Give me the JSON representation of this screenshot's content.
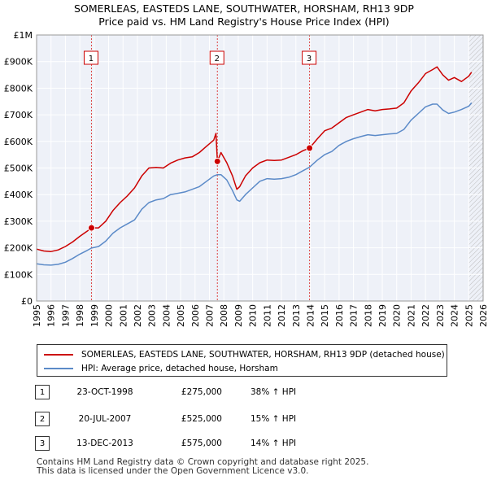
{
  "title_line1": "SOMERLEAS, EASTEDS LANE, SOUTHWATER, HORSHAM, RH13 9DP",
  "title_line2": "Price paid vs. HM Land Registry's House Price Index (HPI)",
  "chart_data": {
    "type": "line",
    "x_range": [
      1995,
      2026
    ],
    "ylim": [
      0,
      1000000
    ],
    "y_ticks": [
      {
        "value": 0,
        "label": "£0"
      },
      {
        "value": 100000,
        "label": "£100K"
      },
      {
        "value": 200000,
        "label": "£200K"
      },
      {
        "value": 300000,
        "label": "£300K"
      },
      {
        "value": 400000,
        "label": "£400K"
      },
      {
        "value": 500000,
        "label": "£500K"
      },
      {
        "value": 600000,
        "label": "£600K"
      },
      {
        "value": 700000,
        "label": "£700K"
      },
      {
        "value": 800000,
        "label": "£800K"
      },
      {
        "value": 900000,
        "label": "£900K"
      },
      {
        "value": 1000000,
        "label": "£1M"
      }
    ],
    "x_ticks": [
      "1995",
      "1996",
      "1997",
      "1998",
      "1999",
      "2000",
      "2001",
      "2002",
      "2003",
      "2004",
      "2005",
      "2006",
      "2007",
      "2008",
      "2009",
      "2010",
      "2011",
      "2012",
      "2013",
      "2014",
      "2015",
      "2016",
      "2017",
      "2018",
      "2019",
      "2020",
      "2021",
      "2022",
      "2023",
      "2024",
      "2025",
      "2026"
    ],
    "grid": true,
    "future_hatch_from": 2025.0,
    "series": [
      {
        "name": "SOMERLEAS, EASTEDS LANE, SOUTHWATER, HORSHAM, RH13 9DP (detached house)",
        "color": "#cc0000",
        "x": [
          1995.0,
          1995.5,
          1996.0,
          1996.5,
          1997.0,
          1997.5,
          1998.0,
          1998.5,
          1998.81,
          1999.3,
          1999.8,
          2000.3,
          2000.8,
          2001.3,
          2001.8,
          2002.3,
          2002.8,
          2003.3,
          2003.8,
          2004.3,
          2004.8,
          2005.3,
          2005.8,
          2006.3,
          2006.8,
          2007.3,
          2007.45,
          2007.55,
          2007.8,
          2008.2,
          2008.6,
          2008.9,
          2009.1,
          2009.5,
          2010.0,
          2010.5,
          2011.0,
          2011.5,
          2012.0,
          2012.5,
          2013.0,
          2013.5,
          2013.95,
          2014.5,
          2015.0,
          2015.5,
          2016.0,
          2016.5,
          2017.0,
          2017.5,
          2018.0,
          2018.5,
          2019.0,
          2019.5,
          2020.0,
          2020.5,
          2021.0,
          2021.5,
          2022.0,
          2022.5,
          2022.8,
          2023.2,
          2023.6,
          2024.0,
          2024.5,
          2025.0,
          2025.2
        ],
        "values": [
          195000,
          188000,
          186000,
          192000,
          205000,
          222000,
          243000,
          262000,
          275000,
          275000,
          300000,
          340000,
          370000,
          395000,
          425000,
          470000,
          500000,
          502000,
          500000,
          518000,
          530000,
          538000,
          542000,
          558000,
          582000,
          605000,
          630000,
          525000,
          558000,
          520000,
          470000,
          420000,
          430000,
          470000,
          500000,
          520000,
          530000,
          528000,
          530000,
          540000,
          550000,
          565000,
          575000,
          610000,
          640000,
          650000,
          670000,
          690000,
          700000,
          710000,
          720000,
          715000,
          720000,
          722000,
          725000,
          745000,
          790000,
          820000,
          855000,
          870000,
          880000,
          850000,
          830000,
          840000,
          825000,
          845000,
          860000
        ]
      },
      {
        "name": "HPI: Average price, detached house, Horsham",
        "color": "#5b8ac8",
        "x": [
          1995.0,
          1995.5,
          1996.0,
          1996.5,
          1997.0,
          1997.5,
          1998.0,
          1998.5,
          1998.81,
          1999.3,
          1999.8,
          2000.3,
          2000.8,
          2001.3,
          2001.8,
          2002.3,
          2002.8,
          2003.3,
          2003.8,
          2004.3,
          2004.8,
          2005.3,
          2005.8,
          2006.3,
          2006.8,
          2007.3,
          2007.55,
          2007.8,
          2008.2,
          2008.6,
          2008.9,
          2009.1,
          2009.5,
          2010.0,
          2010.5,
          2011.0,
          2011.5,
          2012.0,
          2012.5,
          2013.0,
          2013.5,
          2013.95,
          2014.5,
          2015.0,
          2015.5,
          2016.0,
          2016.5,
          2017.0,
          2017.5,
          2018.0,
          2018.5,
          2019.0,
          2019.5,
          2020.0,
          2020.5,
          2021.0,
          2021.5,
          2022.0,
          2022.5,
          2022.8,
          2023.2,
          2023.6,
          2024.0,
          2024.5,
          2025.0,
          2025.2
        ],
        "values": [
          140000,
          136000,
          135000,
          138000,
          146000,
          160000,
          176000,
          190000,
          199000,
          205000,
          225000,
          255000,
          275000,
          290000,
          305000,
          345000,
          370000,
          380000,
          385000,
          400000,
          405000,
          410000,
          420000,
          430000,
          450000,
          470000,
          475000,
          475000,
          455000,
          415000,
          380000,
          375000,
          400000,
          425000,
          450000,
          460000,
          458000,
          460000,
          465000,
          475000,
          490000,
          503000,
          530000,
          550000,
          562000,
          585000,
          600000,
          610000,
          618000,
          625000,
          622000,
          625000,
          628000,
          630000,
          645000,
          680000,
          705000,
          730000,
          740000,
          740000,
          718000,
          705000,
          710000,
          720000,
          732000,
          745000
        ]
      }
    ],
    "markers": [
      {
        "label": "1",
        "x": 1998.81,
        "y": 275000
      },
      {
        "label": "2",
        "x": 2007.55,
        "y": 525000
      },
      {
        "label": "3",
        "x": 2013.95,
        "y": 575000
      }
    ]
  },
  "legend": [
    {
      "label": "SOMERLEAS, EASTEDS LANE, SOUTHWATER, HORSHAM, RH13 9DP (detached house)",
      "color": "#cc0000"
    },
    {
      "label": "HPI: Average price, detached house, Horsham",
      "color": "#5b8ac8"
    }
  ],
  "sales": [
    {
      "num": "1",
      "date": "23-OCT-1998",
      "price": "£275,000",
      "hpi": "38% ↑ HPI"
    },
    {
      "num": "2",
      "date": "20-JUL-2007",
      "price": "£525,000",
      "hpi": "15% ↑ HPI"
    },
    {
      "num": "3",
      "date": "13-DEC-2013",
      "price": "£575,000",
      "hpi": "14% ↑ HPI"
    }
  ],
  "footer_line1": "Contains HM Land Registry data © Crown copyright and database right 2025.",
  "footer_line2": "This data is licensed under the Open Government Licence v3.0."
}
